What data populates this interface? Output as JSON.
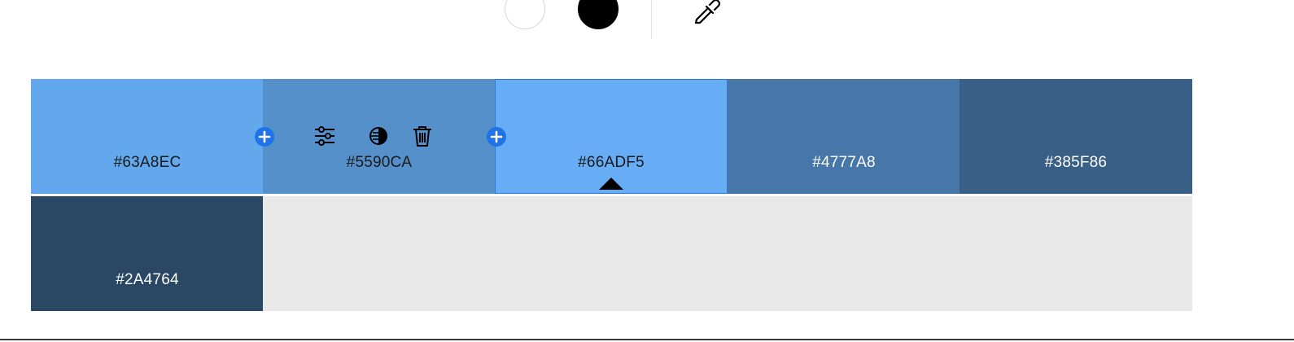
{
  "toolbar": {
    "white_swatch_color": "#FFFFFF",
    "black_swatch_color": "#000000",
    "eyedropper_icon": "eyedropper-icon"
  },
  "palette": {
    "colors": [
      {
        "hex": "#63A8EC",
        "label": "#63A8EC",
        "text_color": "#1a1a1a"
      },
      {
        "hex": "#5590CA",
        "label": "#5590CA",
        "text_color": "#1a1a1a"
      },
      {
        "hex": "#66ADF5",
        "label": "#66ADF5",
        "text_color": "#1a1a1a"
      },
      {
        "hex": "#4777A8",
        "label": "#4777A8",
        "text_color": "#ffffff"
      },
      {
        "hex": "#385F86",
        "label": "#385F86",
        "text_color": "#ffffff"
      },
      {
        "hex": "#2A4764",
        "label": "#2A4764",
        "text_color": "#ffffff"
      }
    ],
    "empty_slots": 4,
    "empty_color": "#E8E8E8",
    "selected_index": 2,
    "hovered_index": 1,
    "accent_color": "#1E73E8",
    "hover_tools": [
      "adjust-sliders-icon",
      "contrast-icon",
      "trash-icon"
    ]
  }
}
